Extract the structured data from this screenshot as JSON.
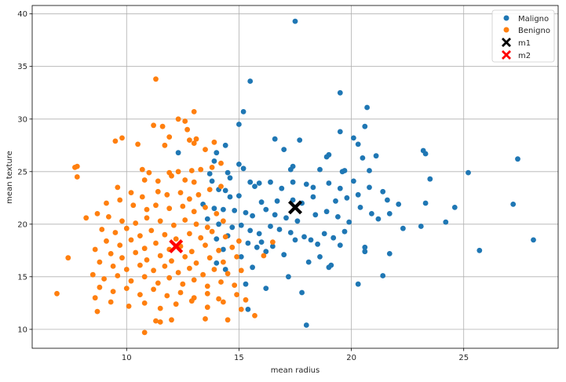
{
  "chart_data": {
    "type": "scatter",
    "title": "",
    "xlabel": "mean radius",
    "ylabel": "mean texture",
    "xlim": [
      5.8,
      29.2
    ],
    "ylim": [
      8.2,
      40.8
    ],
    "xticks": [
      10,
      15,
      20,
      25
    ],
    "yticks": [
      10,
      15,
      20,
      25,
      30,
      35,
      40
    ],
    "grid": true,
    "legend_position": "top-right",
    "colors": {
      "malignant": "#1f77b4",
      "benign": "#ff7f0e",
      "m1": "#000000",
      "m2": "#ff0000"
    },
    "legend": [
      {
        "label": "Maligno",
        "marker": "dot",
        "color": "#1f77b4"
      },
      {
        "label": "Benigno",
        "marker": "dot",
        "color": "#ff7f0e"
      },
      {
        "label": "m1",
        "marker": "x",
        "color": "#000000"
      },
      {
        "label": "m2",
        "marker": "x",
        "color": "#ff0000"
      }
    ],
    "series": [
      {
        "name": "Maligno",
        "color": "#1f77b4",
        "points": [
          [
            17.5,
            39.3
          ],
          [
            15.5,
            33.6
          ],
          [
            19.5,
            32.5
          ],
          [
            20.7,
            31.1
          ],
          [
            15.2,
            30.7
          ],
          [
            15.0,
            29.5
          ],
          [
            20.6,
            29.3
          ],
          [
            19.5,
            28.8
          ],
          [
            16.6,
            28.1
          ],
          [
            17.7,
            28.0
          ],
          [
            20.1,
            28.2
          ],
          [
            20.3,
            27.6
          ],
          [
            14.4,
            27.5
          ],
          [
            17.0,
            27.1
          ],
          [
            14.0,
            26.8
          ],
          [
            12.3,
            26.8
          ],
          [
            13.9,
            26.0
          ],
          [
            18.9,
            26.4
          ],
          [
            19.0,
            26.6
          ],
          [
            20.5,
            26.3
          ],
          [
            21.1,
            26.5
          ],
          [
            23.2,
            27.0
          ],
          [
            23.3,
            26.7
          ],
          [
            27.4,
            26.2
          ],
          [
            15.0,
            25.7
          ],
          [
            15.2,
            25.3
          ],
          [
            17.4,
            25.5
          ],
          [
            17.3,
            25.2
          ],
          [
            18.6,
            25.2
          ],
          [
            19.6,
            25.0
          ],
          [
            19.7,
            25.1
          ],
          [
            20.8,
            25.1
          ],
          [
            25.2,
            24.9
          ],
          [
            14.5,
            24.9
          ],
          [
            14.6,
            24.4
          ],
          [
            13.7,
            24.8
          ],
          [
            13.8,
            24.1
          ],
          [
            15.5,
            24.0
          ],
          [
            15.7,
            23.6
          ],
          [
            15.9,
            23.9
          ],
          [
            16.4,
            24.0
          ],
          [
            16.9,
            23.4
          ],
          [
            17.4,
            24.0
          ],
          [
            18.0,
            23.8
          ],
          [
            18.3,
            23.5
          ],
          [
            19.0,
            23.9
          ],
          [
            19.5,
            23.4
          ],
          [
            20.1,
            24.1
          ],
          [
            20.8,
            23.5
          ],
          [
            21.4,
            23.1
          ],
          [
            23.5,
            24.3
          ],
          [
            14.1,
            23.3
          ],
          [
            14.4,
            23.2
          ],
          [
            14.6,
            22.6
          ],
          [
            15.0,
            22.7
          ],
          [
            16.0,
            22.1
          ],
          [
            16.7,
            22.2
          ],
          [
            17.4,
            22.3
          ],
          [
            17.8,
            22.0
          ],
          [
            18.3,
            22.6
          ],
          [
            19.3,
            22.2
          ],
          [
            19.8,
            22.5
          ],
          [
            20.3,
            22.8
          ],
          [
            21.6,
            22.3
          ],
          [
            22.1,
            21.9
          ],
          [
            23.3,
            22.0
          ],
          [
            24.6,
            21.6
          ],
          [
            27.2,
            21.9
          ],
          [
            13.4,
            21.9
          ],
          [
            13.9,
            21.5
          ],
          [
            14.3,
            21.4
          ],
          [
            14.8,
            21.3
          ],
          [
            15.3,
            21.1
          ],
          [
            15.6,
            20.8
          ],
          [
            16.2,
            21.4
          ],
          [
            16.6,
            20.9
          ],
          [
            17.1,
            20.6
          ],
          [
            17.6,
            20.3
          ],
          [
            18.4,
            20.9
          ],
          [
            18.9,
            21.2
          ],
          [
            19.4,
            20.7
          ],
          [
            19.9,
            20.2
          ],
          [
            20.4,
            21.6
          ],
          [
            20.9,
            21.0
          ],
          [
            21.2,
            20.5
          ],
          [
            21.7,
            21.0
          ],
          [
            22.3,
            19.6
          ],
          [
            23.1,
            19.8
          ],
          [
            24.2,
            20.2
          ],
          [
            13.6,
            20.5
          ],
          [
            14.1,
            20.0
          ],
          [
            14.7,
            19.7
          ],
          [
            15.1,
            19.9
          ],
          [
            15.5,
            19.4
          ],
          [
            15.9,
            19.1
          ],
          [
            16.4,
            19.8
          ],
          [
            16.8,
            19.5
          ],
          [
            17.3,
            19.2
          ],
          [
            17.9,
            18.8
          ],
          [
            18.2,
            18.5
          ],
          [
            18.8,
            19.1
          ],
          [
            19.2,
            18.7
          ],
          [
            19.7,
            19.3
          ],
          [
            14.0,
            18.6
          ],
          [
            14.5,
            18.9
          ],
          [
            15.4,
            18.2
          ],
          [
            16.0,
            18.3
          ],
          [
            16.5,
            17.9
          ],
          [
            17.5,
            18.5
          ],
          [
            18.5,
            18.1
          ],
          [
            19.5,
            18.0
          ],
          [
            20.6,
            17.8
          ],
          [
            20.6,
            17.4
          ],
          [
            21.7,
            17.2
          ],
          [
            25.7,
            17.5
          ],
          [
            28.1,
            18.5
          ],
          [
            14.3,
            17.6
          ],
          [
            15.1,
            16.9
          ],
          [
            15.8,
            17.8
          ],
          [
            16.2,
            17.4
          ],
          [
            17.0,
            17.1
          ],
          [
            18.1,
            16.4
          ],
          [
            18.6,
            16.9
          ],
          [
            19.1,
            16.1
          ],
          [
            14.0,
            16.3
          ],
          [
            14.4,
            15.7
          ],
          [
            15.6,
            15.9
          ],
          [
            17.2,
            15.0
          ],
          [
            19.0,
            15.9
          ],
          [
            21.4,
            15.1
          ],
          [
            15.3,
            14.3
          ],
          [
            16.2,
            13.9
          ],
          [
            17.8,
            13.5
          ],
          [
            20.3,
            14.3
          ],
          [
            15.4,
            11.9
          ],
          [
            18.0,
            10.4
          ]
        ]
      },
      {
        "name": "Benigno",
        "color": "#ff7f0e",
        "points": [
          [
            11.3,
            33.8
          ],
          [
            11.2,
            29.4
          ],
          [
            11.6,
            29.3
          ],
          [
            11.9,
            28.3
          ],
          [
            12.7,
            29.0
          ],
          [
            12.6,
            29.8
          ],
          [
            13.0,
            30.7
          ],
          [
            12.3,
            30.0
          ],
          [
            12.8,
            28.0
          ],
          [
            13.0,
            27.7
          ],
          [
            13.1,
            28.1
          ],
          [
            9.5,
            27.9
          ],
          [
            9.8,
            28.2
          ],
          [
            10.5,
            27.6
          ],
          [
            11.7,
            27.5
          ],
          [
            13.5,
            27.1
          ],
          [
            13.9,
            27.8
          ],
          [
            7.7,
            25.4
          ],
          [
            7.8,
            25.5
          ],
          [
            7.8,
            24.5
          ],
          [
            10.7,
            25.2
          ],
          [
            11.0,
            24.9
          ],
          [
            11.9,
            24.9
          ],
          [
            12.3,
            25.0
          ],
          [
            12.9,
            25.1
          ],
          [
            13.3,
            25.2
          ],
          [
            13.8,
            25.4
          ],
          [
            14.2,
            25.8
          ],
          [
            10.8,
            24.2
          ],
          [
            11.4,
            24.1
          ],
          [
            12.0,
            24.6
          ],
          [
            12.6,
            24.2
          ],
          [
            13.0,
            24.0
          ],
          [
            9.6,
            23.5
          ],
          [
            10.2,
            23.0
          ],
          [
            10.7,
            22.6
          ],
          [
            11.4,
            23.1
          ],
          [
            11.8,
            22.8
          ],
          [
            12.4,
            23.0
          ],
          [
            12.8,
            22.4
          ],
          [
            13.2,
            22.8
          ],
          [
            13.7,
            23.3
          ],
          [
            14.2,
            23.6
          ],
          [
            9.1,
            22.0
          ],
          [
            9.7,
            22.3
          ],
          [
            10.3,
            21.8
          ],
          [
            10.9,
            21.4
          ],
          [
            11.3,
            21.8
          ],
          [
            11.9,
            21.5
          ],
          [
            12.5,
            21.7
          ],
          [
            13.0,
            21.2
          ],
          [
            13.5,
            21.6
          ],
          [
            14.0,
            21.0
          ],
          [
            8.7,
            21.0
          ],
          [
            9.2,
            20.7
          ],
          [
            9.8,
            20.3
          ],
          [
            10.4,
            20.1
          ],
          [
            10.9,
            20.6
          ],
          [
            11.5,
            20.3
          ],
          [
            12.1,
            19.9
          ],
          [
            12.6,
            20.4
          ],
          [
            13.1,
            20.0
          ],
          [
            13.6,
            19.7
          ],
          [
            14.3,
            20.3
          ],
          [
            8.2,
            20.6
          ],
          [
            8.9,
            19.5
          ],
          [
            9.5,
            19.2
          ],
          [
            10.0,
            19.6
          ],
          [
            10.6,
            18.9
          ],
          [
            11.1,
            19.4
          ],
          [
            11.7,
            19.0
          ],
          [
            12.2,
            18.6
          ],
          [
            12.8,
            19.1
          ],
          [
            13.3,
            18.7
          ],
          [
            13.8,
            19.3
          ],
          [
            14.4,
            18.8
          ],
          [
            15.0,
            18.4
          ],
          [
            9.1,
            18.4
          ],
          [
            9.7,
            18.0
          ],
          [
            10.2,
            18.5
          ],
          [
            10.8,
            17.7
          ],
          [
            11.3,
            18.2
          ],
          [
            11.9,
            17.6
          ],
          [
            12.4,
            17.9
          ],
          [
            12.9,
            17.4
          ],
          [
            13.5,
            18.0
          ],
          [
            14.1,
            17.5
          ],
          [
            14.7,
            17.8
          ],
          [
            8.6,
            17.6
          ],
          [
            9.3,
            17.2
          ],
          [
            9.8,
            16.8
          ],
          [
            10.4,
            17.3
          ],
          [
            10.9,
            16.6
          ],
          [
            11.5,
            17.0
          ],
          [
            12.0,
            16.5
          ],
          [
            12.6,
            16.9
          ],
          [
            13.1,
            16.3
          ],
          [
            13.7,
            16.8
          ],
          [
            14.3,
            16.4
          ],
          [
            14.9,
            16.9
          ],
          [
            7.4,
            16.8
          ],
          [
            8.8,
            16.4
          ],
          [
            9.4,
            16.0
          ],
          [
            10.0,
            15.7
          ],
          [
            10.6,
            16.1
          ],
          [
            11.2,
            15.6
          ],
          [
            11.7,
            16.0
          ],
          [
            12.3,
            15.4
          ],
          [
            12.8,
            15.8
          ],
          [
            13.4,
            15.2
          ],
          [
            13.9,
            15.7
          ],
          [
            14.5,
            15.3
          ],
          [
            15.1,
            15.6
          ],
          [
            8.5,
            15.2
          ],
          [
            9.0,
            14.8
          ],
          [
            9.6,
            15.1
          ],
          [
            10.2,
            14.6
          ],
          [
            10.8,
            15.0
          ],
          [
            11.4,
            14.4
          ],
          [
            11.9,
            14.9
          ],
          [
            12.5,
            14.3
          ],
          [
            13.0,
            14.7
          ],
          [
            13.6,
            14.1
          ],
          [
            14.2,
            14.5
          ],
          [
            14.8,
            14.2
          ],
          [
            8.8,
            14.0
          ],
          [
            9.4,
            13.6
          ],
          [
            10.0,
            13.9
          ],
          [
            10.6,
            13.3
          ],
          [
            11.2,
            13.8
          ],
          [
            11.8,
            13.2
          ],
          [
            12.4,
            13.5
          ],
          [
            13.0,
            13.0
          ],
          [
            13.6,
            13.4
          ],
          [
            14.1,
            12.9
          ],
          [
            14.9,
            13.3
          ],
          [
            15.3,
            12.8
          ],
          [
            6.9,
            13.4
          ],
          [
            8.6,
            13.0
          ],
          [
            9.3,
            12.6
          ],
          [
            10.1,
            12.2
          ],
          [
            10.8,
            12.5
          ],
          [
            11.5,
            12.0
          ],
          [
            12.2,
            12.4
          ],
          [
            12.9,
            12.7
          ],
          [
            13.6,
            12.1
          ],
          [
            14.3,
            12.6
          ],
          [
            15.1,
            11.9
          ],
          [
            8.7,
            11.7
          ],
          [
            11.3,
            10.8
          ],
          [
            11.5,
            10.7
          ],
          [
            12.0,
            10.9
          ],
          [
            13.5,
            11.0
          ],
          [
            14.5,
            10.9
          ],
          [
            15.7,
            11.3
          ],
          [
            10.8,
            9.7
          ],
          [
            16.5,
            18.3
          ],
          [
            16.1,
            17.0
          ]
        ]
      }
    ],
    "centroids": [
      {
        "name": "m1",
        "x": 17.5,
        "y": 21.6,
        "color": "#000000"
      },
      {
        "name": "m2",
        "x": 12.2,
        "y": 17.9,
        "color": "#ff0000"
      }
    ]
  }
}
